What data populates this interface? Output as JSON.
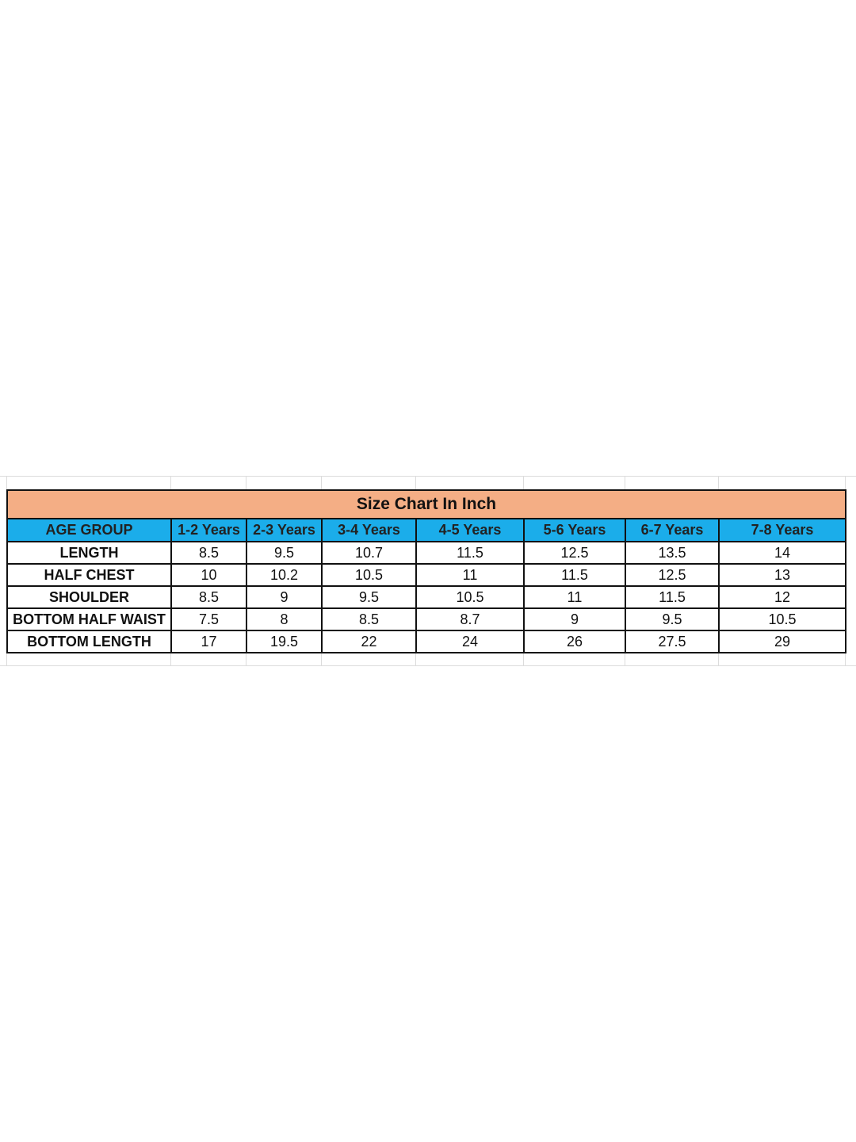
{
  "table": {
    "title": "Size Chart In Inch",
    "colors": {
      "title_bg": "#f4ae85",
      "header_bg": "#1badea"
    },
    "headers": [
      "AGE GROUP",
      "1-2 Years",
      "2-3 Years",
      "3-4 Years",
      "4-5 Years",
      "5-6 Years",
      "6-7 Years",
      "7-8 Years"
    ],
    "rows": [
      {
        "label": "LENGTH",
        "values": [
          "8.5",
          "9.5",
          "10.7",
          "11.5",
          "12.5",
          "13.5",
          "14"
        ]
      },
      {
        "label": "HALF CHEST",
        "values": [
          "10",
          "10.2",
          "10.5",
          "11",
          "11.5",
          "12.5",
          "13"
        ]
      },
      {
        "label": "SHOULDER",
        "values": [
          "8.5",
          "9",
          "9.5",
          "10.5",
          "11",
          "11.5",
          "12"
        ]
      },
      {
        "label": "BOTTOM  HALF WAIST",
        "values": [
          "7.5",
          "8",
          "8.5",
          "8.7",
          "9",
          "9.5",
          "10.5"
        ]
      },
      {
        "label": "BOTTOM LENGTH",
        "values": [
          "17",
          "19.5",
          "22",
          "24",
          "26",
          "27.5",
          "29"
        ]
      }
    ]
  }
}
